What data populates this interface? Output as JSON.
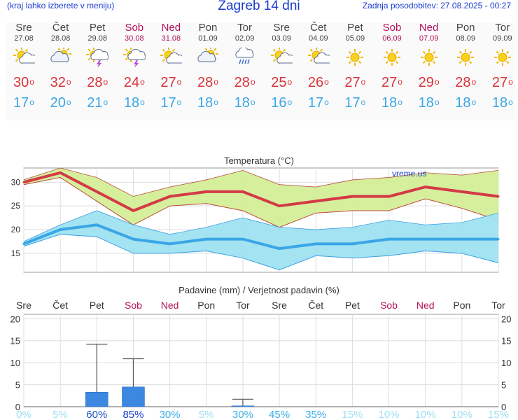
{
  "header": {
    "menu_note": "(kraj lahko izberete v meniju)",
    "title": "Zagreb 14 dni",
    "updated": "Zadnja posodobitev: 27.08.2025 - 00:27"
  },
  "colors": {
    "accent": "#1a3ccf",
    "weekend": "#b3125a",
    "max_temp": "#d9343a",
    "min_temp": "#3aa6e6",
    "precip_bar": "#3c87e0"
  },
  "days": [
    {
      "name": "Sre",
      "date": "27.08",
      "weekend": false,
      "icon": "sun-cloud-icon",
      "max": "30",
      "min": "17"
    },
    {
      "name": "Čet",
      "date": "28.08",
      "weekend": false,
      "icon": "cloudy-sun-icon",
      "max": "32",
      "min": "20"
    },
    {
      "name": "Pet",
      "date": "29.08",
      "weekend": false,
      "icon": "thunderstorm-icon",
      "max": "28",
      "min": "21"
    },
    {
      "name": "Sob",
      "date": "30.08",
      "weekend": true,
      "icon": "thunderstorm-icon",
      "max": "24",
      "min": "18"
    },
    {
      "name": "Ned",
      "date": "31.08",
      "weekend": true,
      "icon": "sun-cloud-icon",
      "max": "27",
      "min": "17"
    },
    {
      "name": "Pon",
      "date": "01.09",
      "weekend": false,
      "icon": "cloudy-sun-icon",
      "max": "28",
      "min": "18"
    },
    {
      "name": "Tor",
      "date": "02.09",
      "weekend": false,
      "icon": "rain-cloud-icon",
      "max": "28",
      "min": "18"
    },
    {
      "name": "Sre",
      "date": "03.09",
      "weekend": false,
      "icon": "sun-cloud-icon",
      "max": "25",
      "min": "16"
    },
    {
      "name": "Čet",
      "date": "04.09",
      "weekend": false,
      "icon": "sun-cloud-icon",
      "max": "26",
      "min": "17"
    },
    {
      "name": "Pet",
      "date": "05.09",
      "weekend": false,
      "icon": "sun-icon",
      "max": "27",
      "min": "17"
    },
    {
      "name": "Sob",
      "date": "06.09",
      "weekend": true,
      "icon": "sun-icon",
      "max": "27",
      "min": "18"
    },
    {
      "name": "Ned",
      "date": "07.09",
      "weekend": true,
      "icon": "sun-icon",
      "max": "29",
      "min": "18"
    },
    {
      "name": "Pon",
      "date": "08.09",
      "weekend": false,
      "icon": "sun-icon",
      "max": "28",
      "min": "18"
    },
    {
      "name": "Tor",
      "date": "09.09",
      "weekend": false,
      "icon": "sun-icon",
      "max": "27",
      "min": "18"
    }
  ],
  "chart_data": [
    {
      "type": "line",
      "title": "Temperatura (°C)",
      "watermark": "vreme.us",
      "categories": [
        "Sre",
        "Čet",
        "Pet",
        "Sob",
        "Ned",
        "Pon",
        "Tor",
        "Sre",
        "Čet",
        "Pet",
        "Sob",
        "Ned",
        "Pon",
        "Tor"
      ],
      "ylim": [
        11,
        33
      ],
      "yticks": [
        15,
        20,
        25,
        30
      ],
      "grid": true,
      "series": [
        {
          "values": [
            30,
            32,
            28,
            24,
            27,
            28,
            28,
            25,
            26,
            27,
            27,
            29,
            28,
            27
          ],
          "band_upper": [
            30.5,
            33,
            31,
            27,
            29,
            30.5,
            32.5,
            29.5,
            29,
            30.5,
            31,
            32,
            31.5,
            32.5
          ],
          "band_lower": [
            29.5,
            31,
            26,
            21,
            25,
            25.5,
            24,
            20.5,
            23.5,
            24,
            24,
            26.5,
            24.5,
            22
          ]
        },
        {
          "values": [
            17,
            20,
            21,
            18,
            17,
            18,
            18,
            16,
            17,
            17,
            18,
            18,
            18,
            18
          ],
          "band_upper": [
            17.5,
            21,
            24,
            21,
            19,
            20.5,
            22.5,
            20.5,
            20,
            20.5,
            22,
            21,
            21.5,
            23.5
          ],
          "band_lower": [
            16.5,
            19,
            18.5,
            15,
            15,
            15.5,
            14,
            11.5,
            14.5,
            14,
            14.5,
            15.5,
            15,
            13
          ]
        }
      ]
    },
    {
      "type": "bar",
      "title": "Padavine (mm) / Verjetnost padavin (%)",
      "categories": [
        "Sre",
        "Čet",
        "Pet",
        "Sob",
        "Ned",
        "Pon",
        "Tor",
        "Sre",
        "Čet",
        "Pet",
        "Sob",
        "Ned",
        "Pon",
        "Tor"
      ],
      "ylim": [
        0,
        21
      ],
      "yticks": [
        0,
        5,
        10,
        15,
        20
      ],
      "values": [
        0,
        0,
        3.3,
        4.5,
        0,
        0,
        0.2,
        0,
        0,
        0,
        0,
        0,
        0,
        0
      ],
      "error_high": [
        0,
        0,
        14.2,
        10.9,
        0,
        0,
        1.7,
        0,
        0,
        0,
        0,
        0,
        0,
        0
      ],
      "probability": [
        "0%",
        "5%",
        "60%",
        "85%",
        "30%",
        "5%",
        "30%",
        "45%",
        "35%",
        "15%",
        "10%",
        "10%",
        "10%",
        "15%"
      ]
    }
  ]
}
